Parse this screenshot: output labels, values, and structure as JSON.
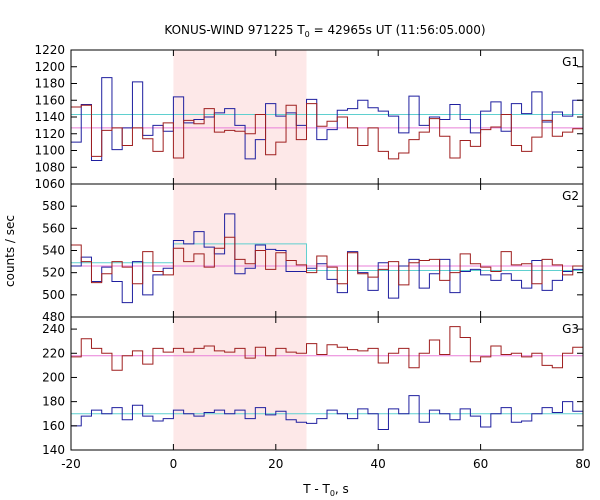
{
  "chart_data": {
    "type": "line",
    "title_main": "KONUS-WIND 971225 T",
    "title_sub": "0",
    "title_rest": " = 42965s UT (11:56:05.000)",
    "xlabel_main": "T - T",
    "xlabel_sub": "0",
    "xlabel_rest": ", s",
    "ylabel": "counts / sec",
    "xlim": [
      -20,
      80
    ],
    "x_ticks": [
      -20,
      0,
      20,
      40,
      60,
      80
    ],
    "highlight_interval": [
      0,
      26
    ],
    "colors": {
      "highlight": "#fde8e8",
      "blue": "#1f1f9f",
      "red": "#9f1f1f",
      "cyan": "#5fcfcf",
      "pink": "#e87fd8"
    },
    "bin_edges": [
      -20,
      -18,
      -16,
      -14,
      -12,
      -10,
      -8,
      -6,
      -4,
      -2,
      0,
      2,
      4,
      6,
      8,
      10,
      12,
      14,
      16,
      18,
      20,
      22,
      24,
      26,
      28,
      30,
      32,
      34,
      36,
      38,
      40,
      42,
      44,
      46,
      48,
      50,
      52,
      54,
      56,
      58,
      60,
      62,
      64,
      66,
      68,
      70,
      72,
      74,
      76,
      78,
      80
    ],
    "panels": [
      {
        "label": "G1",
        "ylim": [
          1060,
          1220
        ],
        "y_ticks": [
          1060,
          1080,
          1100,
          1120,
          1140,
          1160,
          1180,
          1200,
          1220
        ],
        "series": [
          {
            "color": "blue",
            "values": [
              1110,
              1155,
              1088,
              1187,
              1101,
              1127,
              1182,
              1118,
              1130,
              1123,
              1164,
              1133,
              1137,
              1140,
              1145,
              1150,
              1130,
              1090,
              1113,
              1156,
              1141,
              1145,
              1130,
              1161,
              1113,
              1125,
              1148,
              1150,
              1160,
              1151,
              1147,
              1141,
              1121,
              1165,
              1130,
              1140,
              1137,
              1155,
              1137,
              1121,
              1147,
              1158,
              1123,
              1156,
              1144,
              1170,
              1134,
              1146,
              1141,
              1160
            ]
          },
          {
            "color": "red",
            "values": [
              1152,
              1154,
              1093,
              1124,
              1127,
              1106,
              1127,
              1114,
              1099,
              1133,
              1091,
              1136,
              1132,
              1150,
              1122,
              1124,
              1123,
              1120,
              1143,
              1095,
              1110,
              1154,
              1113,
              1156,
              1129,
              1135,
              1140,
              1127,
              1106,
              1127,
              1099,
              1090,
              1097,
              1113,
              1122,
              1138,
              1117,
              1091,
              1112,
              1105,
              1125,
              1128,
              1143,
              1106,
              1099,
              1116,
              1136,
              1117,
              1122,
              1126
            ]
          }
        ],
        "levels": [
          {
            "color": "cyan",
            "segments": [
              [
                -20,
                80,
                1143
              ]
            ]
          },
          {
            "color": "pink",
            "segments": [
              [
                -20,
                80,
                1127
              ]
            ]
          }
        ]
      },
      {
        "label": "G2",
        "ylim": [
          480,
          600
        ],
        "y_ticks": [
          480,
          500,
          520,
          540,
          560,
          580
        ],
        "series": [
          {
            "color": "blue",
            "values": [
              526,
              534,
              512,
              525,
              512,
              493,
              530,
              500,
              518,
              524,
              549,
              546,
              557,
              543,
              537,
              573,
              519,
              524,
              545,
              541,
              540,
              521,
              521,
              524,
              528,
              514,
              502,
              539,
              520,
              504,
              529,
              497,
              526,
              532,
              506,
              519,
              532,
              502,
              521,
              523,
              518,
              513,
              519,
              513,
              506,
              531,
              504,
              513,
              521,
              523
            ]
          },
          {
            "color": "red",
            "values": [
              545,
              530,
              511,
              519,
              530,
              525,
              510,
              539,
              521,
              518,
              542,
              530,
              537,
              525,
              542,
              552,
              532,
              528,
              540,
              523,
              538,
              531,
              527,
              520,
              535,
              525,
              510,
              538,
              519,
              516,
              523,
              530,
              509,
              529,
              531,
              532,
              513,
              520,
              537,
              528,
              525,
              521,
              539,
              527,
              528,
              510,
              532,
              527,
              518,
              526
            ]
          }
        ],
        "levels": [
          {
            "color": "cyan",
            "segments": [
              [
                -20,
                0,
                529
              ],
              [
                0,
                26,
                546
              ],
              [
                26,
                80,
                522
              ]
            ]
          },
          {
            "color": "pink",
            "segments": [
              [
                -20,
                80,
                526
              ]
            ]
          }
        ]
      },
      {
        "label": "G3",
        "ylim": [
          140,
          250
        ],
        "y_ticks": [
          140,
          160,
          180,
          200,
          220,
          240
        ],
        "series": [
          {
            "color": "blue",
            "values": [
              160,
              168,
              173,
              170,
              175,
              165,
              177,
              168,
              164,
              166,
              173,
              170,
              168,
              171,
              173,
              170,
              173,
              166,
              175,
              169,
              172,
              165,
              163,
              162,
              166,
              173,
              170,
              166,
              174,
              170,
              157,
              174,
              170,
              185,
              163,
              173,
              170,
              165,
              174,
              168,
              159,
              170,
              175,
              163,
              164,
              170,
              175,
              171,
              180,
              172
            ]
          },
          {
            "color": "red",
            "values": [
              217,
              232,
              224,
              220,
              206,
              218,
              222,
              211,
              224,
              221,
              224,
              221,
              224,
              226,
              222,
              221,
              224,
              216,
              225,
              218,
              224,
              221,
              220,
              228,
              219,
              227,
              225,
              223,
              222,
              224,
              212,
              220,
              224,
              208,
              220,
              231,
              219,
              242,
              233,
              213,
              217,
              226,
              219,
              220,
              217,
              220,
              210,
              208,
              220,
              225
            ]
          }
        ],
        "levels": [
          {
            "color": "cyan",
            "segments": [
              [
                -20,
                80,
                170
              ]
            ]
          },
          {
            "color": "pink",
            "segments": [
              [
                -20,
                80,
                218
              ]
            ]
          }
        ]
      }
    ]
  }
}
